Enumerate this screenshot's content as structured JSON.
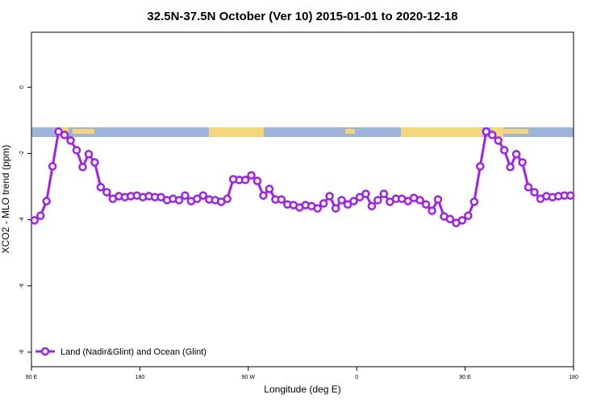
{
  "chart_data": {
    "type": "line",
    "title": "32.5N-37.5N October (Ver 10)   2015-01-01 to 2020-12-18",
    "xlabel": "Longitude (deg E)",
    "ylabel": "XCO2 - MLO trend (ppm)",
    "xlim": [
      90,
      540
    ],
    "ylim": [
      -8.44,
      1.66
    ],
    "xticks": [
      {
        "value": 90,
        "label": "90 E"
      },
      {
        "value": 180,
        "label": "180"
      },
      {
        "value": 270,
        "label": "90 W"
      },
      {
        "value": 360,
        "label": "0"
      },
      {
        "value": 450,
        "label": "90 E"
      },
      {
        "value": 540,
        "label": "180"
      }
    ],
    "yticks": [
      0,
      -2,
      -4,
      -6,
      -8
    ],
    "legend": "bottomleft",
    "x": [
      92.5,
      97.5,
      102.5,
      107.5,
      112.5,
      117.5,
      122.5,
      127.5,
      132.5,
      137.5,
      142.5,
      147.5,
      152.5,
      157.5,
      162.5,
      167.5,
      172.5,
      177.5,
      182.5,
      187.5,
      192.5,
      197.5,
      202.5,
      207.5,
      212.5,
      217.5,
      222.5,
      227.5,
      232.5,
      237.5,
      242.5,
      247.5,
      252.5,
      257.5,
      262.5,
      267.5,
      272.5,
      277.5,
      282.5,
      287.5,
      292.5,
      297.5,
      302.5,
      307.5,
      312.5,
      317.5,
      322.5,
      327.5,
      332.5,
      337.5,
      342.5,
      347.5,
      352.5,
      357.5,
      362.5,
      367.5,
      372.5,
      377.5,
      382.5,
      387.5,
      392.5,
      397.5,
      402.5,
      407.5,
      412.5,
      417.5,
      422.5,
      427.5,
      432.5,
      437.5,
      442.5,
      447.5,
      452.5,
      457.5,
      462.5,
      467.5,
      472.5,
      477.5,
      482.5,
      487.5,
      492.5,
      497.5,
      502.5,
      507.5,
      512.5,
      517.5,
      522.5,
      527.5,
      532.5,
      537.5
    ],
    "series": [
      {
        "name": "Land (Nadir&Glint) and Ocean (Glint)",
        "color": "#a020f0",
        "values": [
          -4.02,
          -3.88,
          -3.44,
          -2.39,
          -1.34,
          -1.44,
          -1.61,
          -1.9,
          -2.41,
          -2.02,
          -2.27,
          -3.02,
          -3.17,
          -3.37,
          -3.29,
          -3.32,
          -3.29,
          -3.27,
          -3.32,
          -3.29,
          -3.32,
          -3.32,
          -3.41,
          -3.37,
          -3.41,
          -3.27,
          -3.44,
          -3.37,
          -3.27,
          -3.39,
          -3.41,
          -3.46,
          -3.37,
          -2.78,
          -2.8,
          -2.8,
          -2.66,
          -2.83,
          -3.27,
          -3.07,
          -3.39,
          -3.39,
          -3.54,
          -3.56,
          -3.63,
          -3.56,
          -3.59,
          -3.66,
          -3.51,
          -3.29,
          -3.66,
          -3.41,
          -3.54,
          -3.44,
          -3.32,
          -3.22,
          -3.59,
          -3.41,
          -3.22,
          -3.46,
          -3.37,
          -3.37,
          -3.44,
          -3.34,
          -3.41,
          -3.54,
          -3.73,
          -3.39,
          -3.9,
          -3.98,
          -4.1,
          -4.02,
          -3.88,
          -3.46,
          -2.39,
          -1.34,
          -1.44,
          -1.61,
          -1.9,
          -2.41,
          -2.02,
          -2.27,
          -3.02,
          -3.17,
          -3.37,
          -3.29,
          -3.32,
          -3.29,
          -3.27,
          -3.27
        ]
      }
    ]
  }
}
